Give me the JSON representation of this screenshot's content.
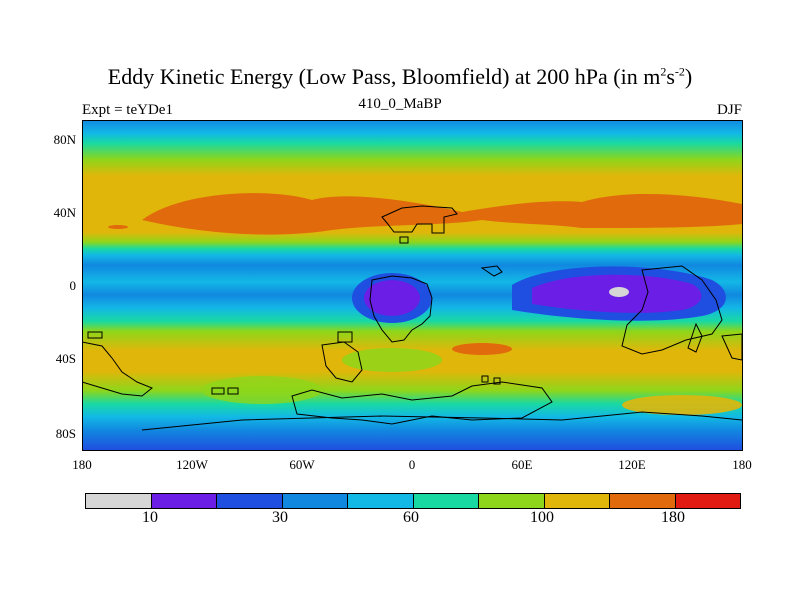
{
  "title": {
    "main": "Eddy Kinetic Energy (Low Pass, Bloomfield) at 200 hPa (in m",
    "sup1": "2",
    "mid": "s",
    "sup2": "-2",
    "end": ")"
  },
  "subtitle": {
    "left": "Expt = teYDe1",
    "center": "410_0_MaBP",
    "right": "DJF"
  },
  "map": {
    "y_ticks": [
      "80N",
      "40N",
      "0",
      "40S",
      "80S"
    ],
    "x_ticks": [
      "180",
      "120W",
      "60W",
      "0",
      "60E",
      "120E",
      "180"
    ]
  },
  "colorbar": {
    "colors": [
      "#d6d6d6",
      "#6a1ee6",
      "#1f4fe0",
      "#1188e0",
      "#12b8e6",
      "#19d9a2",
      "#8ed61a",
      "#e1b60a",
      "#e06a0c",
      "#e11a12"
    ],
    "labels": [
      "10",
      "30",
      "60",
      "100",
      "180"
    ]
  }
}
